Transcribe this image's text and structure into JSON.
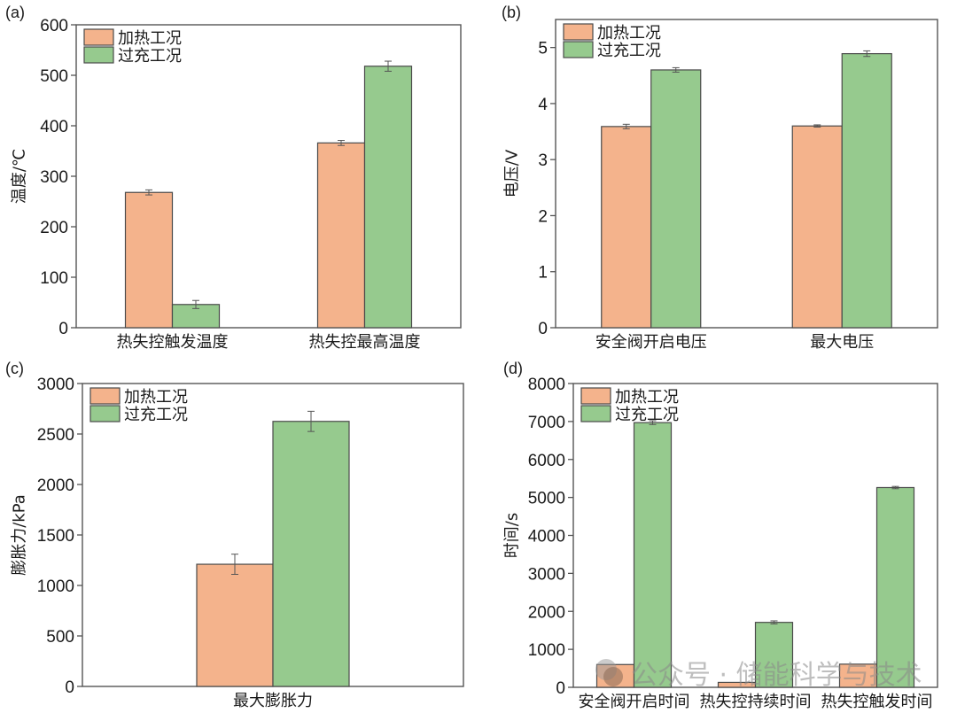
{
  "colors": {
    "heating": "#F4B38C",
    "overcharge": "#96CA8E",
    "edge": "#4a4a4a",
    "axis": "#555555"
  },
  "legend": [
    "加热工况",
    "过充工况"
  ],
  "watermark": "公众号 · 储能科学与技术",
  "chart_data": [
    {
      "panel": "(a)",
      "type": "bar",
      "ylabel": "温度/℃",
      "xlabel": "",
      "ylim": [
        0,
        600
      ],
      "yticks": [
        0,
        100,
        200,
        300,
        400,
        500,
        600
      ],
      "categories": [
        "热失控触发温度",
        "热失控最高温度"
      ],
      "series": [
        {
          "name": "加热工况",
          "values": [
            268,
            366
          ],
          "errors": [
            5,
            5
          ]
        },
        {
          "name": "过充工况",
          "values": [
            46,
            518
          ],
          "errors": [
            8,
            10
          ]
        }
      ],
      "legend_position": "top-left"
    },
    {
      "panel": "(b)",
      "type": "bar",
      "ylabel": "电压/V",
      "xlabel": "",
      "ylim": [
        0,
        5.5
      ],
      "yticks": [
        0,
        1,
        2,
        3,
        4,
        5
      ],
      "categories": [
        "安全阀开启电压",
        "最大电压"
      ],
      "series": [
        {
          "name": "加热工况",
          "values": [
            3.59,
            3.6
          ],
          "errors": [
            0.04,
            0.02
          ]
        },
        {
          "name": "过充工况",
          "values": [
            4.6,
            4.89
          ],
          "errors": [
            0.04,
            0.05
          ]
        }
      ],
      "legend_position": "top-left"
    },
    {
      "panel": "(c)",
      "type": "bar",
      "ylabel": "膨胀力/kPa",
      "xlabel": "",
      "ylim": [
        0,
        3000
      ],
      "yticks": [
        0,
        500,
        1000,
        1500,
        2000,
        2500,
        3000
      ],
      "categories": [
        "最大膨胀力"
      ],
      "series": [
        {
          "name": "加热工况",
          "values": [
            1210
          ],
          "errors": [
            100
          ]
        },
        {
          "name": "过充工况",
          "values": [
            2625
          ],
          "errors": [
            100
          ]
        }
      ],
      "legend_position": "top-left"
    },
    {
      "panel": "(d)",
      "type": "bar",
      "ylabel": "时间/s",
      "xlabel": "",
      "ylim": [
        0,
        8000
      ],
      "yticks": [
        0,
        1000,
        2000,
        3000,
        4000,
        5000,
        6000,
        7000,
        8000
      ],
      "categories": [
        "安全阀开启时间",
        "热失控持续时间",
        "热失控触发时间"
      ],
      "series": [
        {
          "name": "加热工况",
          "values": [
            600,
            130,
            610
          ],
          "errors": [
            0,
            0,
            0
          ]
        },
        {
          "name": "过充工况",
          "values": [
            6970,
            1710,
            5260
          ],
          "errors": [
            50,
            40,
            30
          ]
        }
      ],
      "legend_position": "top-left"
    }
  ]
}
